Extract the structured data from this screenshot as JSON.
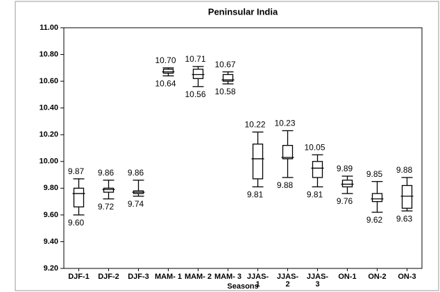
{
  "chart_data": {
    "type": "box",
    "title": "Peninsular India",
    "x_label": "Seasons",
    "categories": [
      "DJF-1",
      "DJF-2",
      "DJF-3",
      "MAM- 1",
      "MAM- 2",
      "MAM- 3",
      "JJAS- 1",
      "JJAS- 2",
      "JJAS- 3",
      "ON-1",
      "ON-2",
      "ON-3"
    ],
    "min": [
      9.6,
      9.72,
      9.74,
      10.64,
      10.56,
      10.58,
      9.81,
      9.88,
      9.81,
      9.76,
      9.62,
      9.63
    ],
    "q1": [
      9.66,
      9.77,
      9.76,
      10.66,
      10.62,
      10.6,
      9.87,
      10.02,
      9.88,
      9.81,
      9.7,
      9.65
    ],
    "median": [
      9.76,
      9.79,
      9.77,
      10.67,
      10.65,
      10.61,
      10.02,
      10.03,
      9.95,
      9.83,
      9.72,
      9.74
    ],
    "q3": [
      9.8,
      9.8,
      9.78,
      10.69,
      10.69,
      10.65,
      10.13,
      10.12,
      10.0,
      9.86,
      9.76,
      9.82
    ],
    "max": [
      9.87,
      9.86,
      9.86,
      10.7,
      10.71,
      10.67,
      10.22,
      10.23,
      10.05,
      9.89,
      9.85,
      9.88
    ],
    "min_labels": [
      "9.60",
      "9.72",
      "9.74",
      "10.64",
      "10.56",
      "10.58",
      "9.81",
      "9.88",
      "9.81",
      "9.76",
      "9.62",
      "9.63"
    ],
    "max_labels": [
      "9.87",
      "9.86",
      "9.86",
      "10.70",
      "10.71",
      "10.67",
      "10.22",
      "10.23",
      "10.05",
      "9.89",
      "9.85",
      "9.88"
    ],
    "ylim": [
      9.2,
      11.0
    ],
    "yticks": [
      {
        "value": 9.2,
        "label": "9.20"
      },
      {
        "value": 9.4,
        "label": "9.40"
      },
      {
        "value": 9.6,
        "label": "9.60"
      },
      {
        "value": 9.8,
        "label": "9.80"
      },
      {
        "value": 10.0,
        "label": "10.00"
      },
      {
        "value": 10.2,
        "label": "10.20"
      },
      {
        "value": 10.4,
        "label": "10.40"
      },
      {
        "value": 10.6,
        "label": "10.60"
      },
      {
        "value": 10.8,
        "label": "10.80"
      },
      {
        "value": 11.0,
        "label": "11.00"
      }
    ],
    "color": "#000000"
  }
}
